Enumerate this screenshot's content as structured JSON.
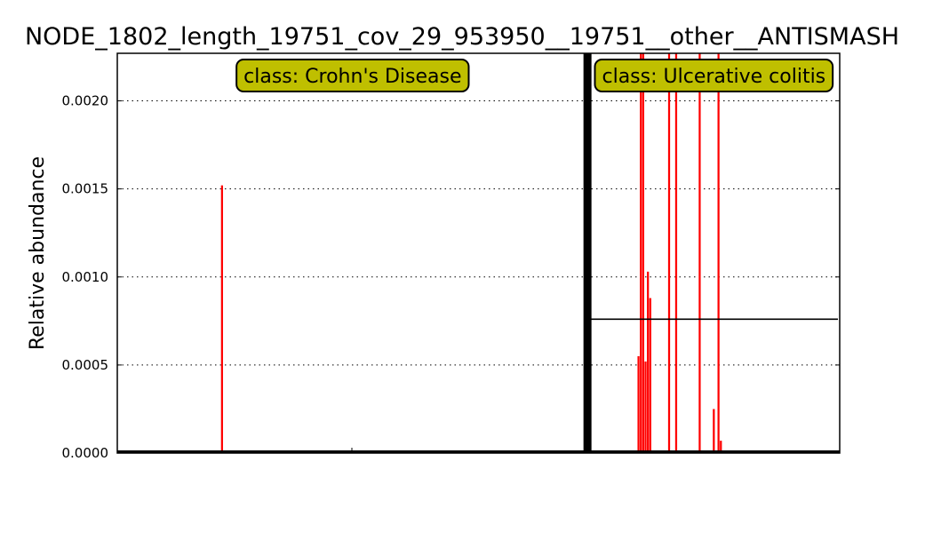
{
  "chart_data": {
    "type": "bar",
    "title": "NODE_1802_length_19751_cov_29_953950__19751__other__ANTISMASH",
    "xlabel": "",
    "ylabel": "Relative abundance",
    "ylim": [
      0,
      0.00227
    ],
    "yticks": [
      "0.0000",
      "0.0005",
      "0.0010",
      "0.0015",
      "0.0020"
    ],
    "ytick_values": [
      0,
      0.0005,
      0.001,
      0.0015,
      0.002
    ],
    "grid": "horizontal dotted",
    "bar_color": "#ff0000",
    "mean_line_color": "#000000",
    "box_color": "#bfbf00",
    "n_samples": 307,
    "classes": [
      {
        "name": "class: Crohn's Disease",
        "start": 0,
        "end": 200,
        "mean": 7.6e-06,
        "nonzero": [
          {
            "sample": 44,
            "value": 0.00152
          }
        ]
      },
      {
        "name": "class: Ulcerative colitis",
        "start": 200,
        "end": 307,
        "mean": 0.00076,
        "nonzero": [
          {
            "sample": 221,
            "value": 0.00055
          },
          {
            "sample": 222,
            "value": 0.00227
          },
          {
            "sample": 223,
            "value": 0.00227
          },
          {
            "sample": 224,
            "value": 0.00052
          },
          {
            "sample": 225,
            "value": 0.00103
          },
          {
            "sample": 226,
            "value": 0.00088
          },
          {
            "sample": 234,
            "value": 0.00227
          },
          {
            "sample": 237,
            "value": 0.00227
          },
          {
            "sample": 247,
            "value": 0.00227
          },
          {
            "sample": 253,
            "value": 0.00025
          },
          {
            "sample": 255,
            "value": 0.00227
          },
          {
            "sample": 256,
            "value": 7e-05
          }
        ]
      }
    ]
  }
}
